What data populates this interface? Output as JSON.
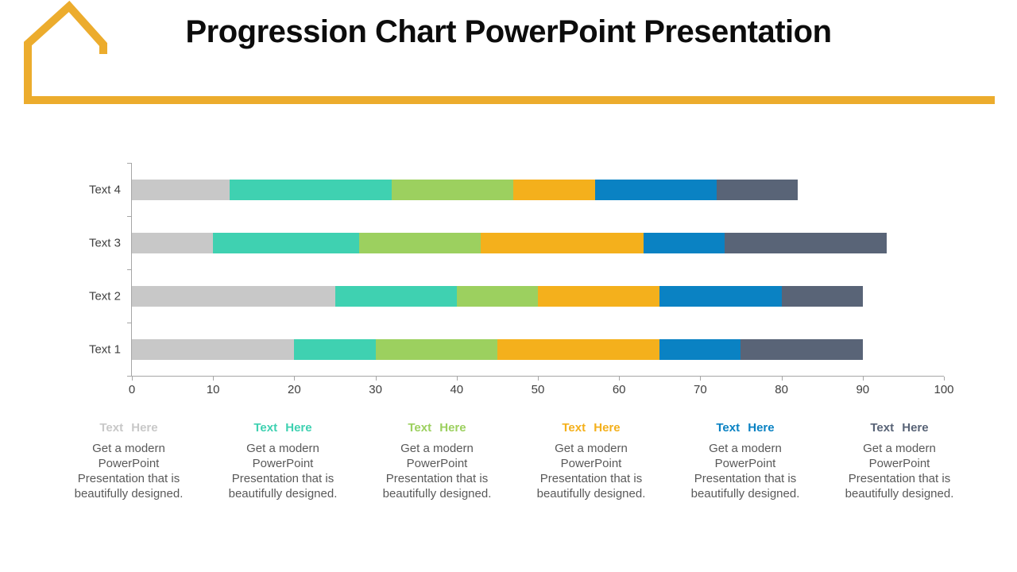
{
  "slide": {
    "title": "Progression Chart PowerPoint Presentation"
  },
  "theme": {
    "accent_gold": "#ecac2d",
    "axis_line_color": "#a6a6a6",
    "axis_text_color": "#3f3f3f",
    "body_text_color": "#595959",
    "title_color": "#0c0c0c"
  },
  "chart_data": {
    "type": "bar",
    "orientation": "horizontal",
    "stacked": true,
    "title": "",
    "xlabel": "",
    "ylabel": "",
    "xlim": [
      0,
      100
    ],
    "x_ticks": [
      0,
      10,
      20,
      30,
      40,
      50,
      60,
      70,
      80,
      90,
      100
    ],
    "grid": false,
    "legend_position": "none",
    "categories": [
      "Text 4",
      "Text 3",
      "Text 2",
      "Text 1"
    ],
    "series": [
      {
        "name": "Text Here",
        "color": "#c8c8c8",
        "values": [
          12,
          10,
          25,
          20
        ]
      },
      {
        "name": "Text Here",
        "color": "#3fd1b1",
        "values": [
          20,
          18,
          15,
          10
        ]
      },
      {
        "name": "Text Here",
        "color": "#9cd05f",
        "values": [
          15,
          15,
          10,
          15
        ]
      },
      {
        "name": "Text Here",
        "color": "#f4b01c",
        "values": [
          10,
          20,
          15,
          20
        ]
      },
      {
        "name": "Text Here",
        "color": "#0a82c3",
        "values": [
          15,
          10,
          15,
          10
        ]
      },
      {
        "name": "Text Here",
        "color": "#596477",
        "values": [
          10,
          20,
          10,
          15
        ]
      }
    ],
    "category_totals": [
      82,
      93,
      90,
      90
    ]
  },
  "legend": {
    "columns": [
      {
        "title": "Text Here",
        "color": "#c8c8c8",
        "body": "Get a modern PowerPoint Presentation that is beautifully designed."
      },
      {
        "title": "Text Here",
        "color": "#3fd1b1",
        "body": "Get a modern PowerPoint Presentation that is beautifully designed."
      },
      {
        "title": "Text Here",
        "color": "#9cd05f",
        "body": "Get a modern PowerPoint Presentation that is beautifully designed."
      },
      {
        "title": "Text Here",
        "color": "#f4b01c",
        "body": "Get a modern PowerPoint Presentation that is beautifully designed."
      },
      {
        "title": "Text Here",
        "color": "#0a82c3",
        "body": "Get a modern PowerPoint Presentation that is beautifully designed."
      },
      {
        "title": "Text Here",
        "color": "#596477",
        "body": "Get a modern PowerPoint Presentation that is beautifully designed."
      }
    ]
  }
}
